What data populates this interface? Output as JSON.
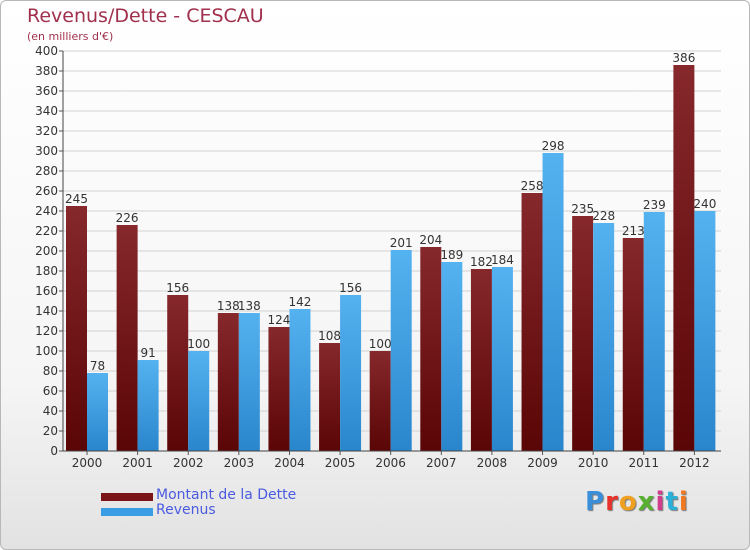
{
  "header": {
    "title": "Revenus/Dette - CESCAU",
    "subtitle": "(en milliers d'€)"
  },
  "brand": {
    "name": "Proxiti",
    "letter_colors": [
      "#3b8fd8",
      "#e8322a",
      "#f0a020",
      "#57b030",
      "#d23c8c",
      "#2bb0d8",
      "#f07820"
    ]
  },
  "chart_data": {
    "type": "bar",
    "title": "Revenus/Dette - CESCAU",
    "ylabel": "(en milliers d'€)",
    "categories": [
      "2000",
      "2001",
      "2002",
      "2003",
      "2004",
      "2005",
      "2006",
      "2007",
      "2008",
      "2009",
      "2010",
      "2011",
      "2012"
    ],
    "series": [
      {
        "name": "Montant de la Dette",
        "values": [
          245,
          226,
          156,
          138,
          124,
          108,
          100,
          204,
          182,
          258,
          235,
          213,
          386
        ],
        "color": "#7a1416"
      },
      {
        "name": "Revenus",
        "values": [
          78,
          91,
          100,
          138,
          142,
          156,
          201,
          189,
          184,
          298,
          228,
          239,
          240
        ],
        "color": "#3a9ee4"
      }
    ],
    "ylim": [
      0,
      400
    ],
    "ytick_step": 20,
    "grid": true,
    "legend_position": "bottom-left"
  }
}
